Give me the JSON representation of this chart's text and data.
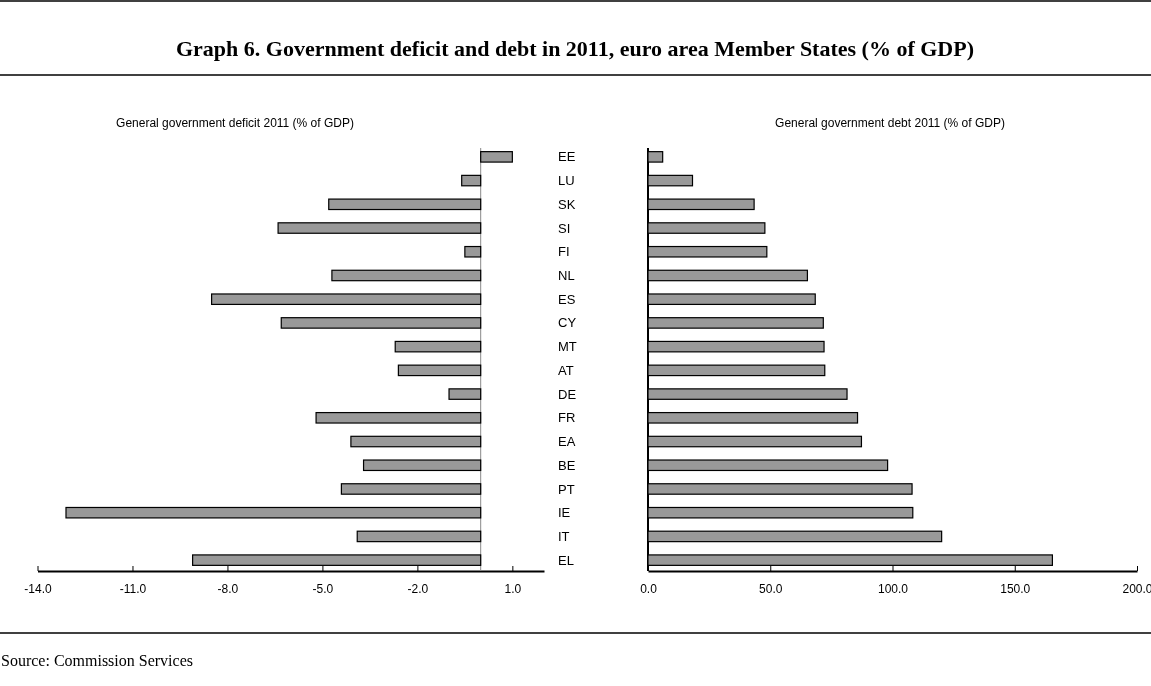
{
  "chart_data": [
    {
      "type": "bar",
      "orientation": "horizontal",
      "title": "Graph 6. Government deficit and debt in 2011, euro area Member States (% of GDP)",
      "subtitle": "General government deficit 2011 (% of GDP)",
      "categories": [
        "EE",
        "LU",
        "SK",
        "SI",
        "FI",
        "NL",
        "ES",
        "CY",
        "MT",
        "AT",
        "DE",
        "FR",
        "EA",
        "BE",
        "PT",
        "IE",
        "IT",
        "EL"
      ],
      "values": [
        1.0,
        -0.6,
        -4.8,
        -6.4,
        -0.5,
        -4.7,
        -8.5,
        -6.3,
        -2.7,
        -2.6,
        -1.0,
        -5.2,
        -4.1,
        -3.7,
        -4.4,
        -13.1,
        -3.9,
        -9.1
      ],
      "color": "#999999",
      "xlim": [
        -14,
        2
      ],
      "xticks": [
        {
          "value": -14,
          "label": "-14.0"
        },
        {
          "value": -11,
          "label": "-11.0"
        },
        {
          "value": -8,
          "label": "-8.0"
        },
        {
          "value": -5,
          "label": "-5.0"
        },
        {
          "value": -2,
          "label": "-2.0"
        },
        {
          "value": 1,
          "label": "1.0"
        }
      ]
    },
    {
      "type": "bar",
      "orientation": "horizontal",
      "title": "General government debt 2011 (% of GDP)",
      "categories": [
        "EE",
        "LU",
        "SK",
        "SI",
        "FI",
        "NL",
        "ES",
        "CY",
        "MT",
        "AT",
        "DE",
        "FR",
        "EA",
        "BE",
        "PT",
        "IE",
        "IT",
        "EL"
      ],
      "values": [
        6.0,
        18.2,
        43.4,
        47.8,
        48.6,
        65.2,
        68.4,
        71.7,
        72.0,
        72.3,
        81.4,
        85.7,
        87.3,
        98.0,
        108.0,
        108.3,
        120.1,
        165.4
      ],
      "color": "#999999",
      "xlim": [
        0,
        200
      ],
      "tick_labels": "x",
      "xticks": [
        {
          "value": 0,
          "label": "0.0"
        },
        {
          "value": 50,
          "label": "50.0"
        },
        {
          "value": 100,
          "label": "100.0"
        },
        {
          "value": 150,
          "label": "150.0"
        },
        {
          "value": 200,
          "label": "200.0"
        }
      ],
      "annotations": [
        "Source: Commission Services"
      ]
    }
  ]
}
